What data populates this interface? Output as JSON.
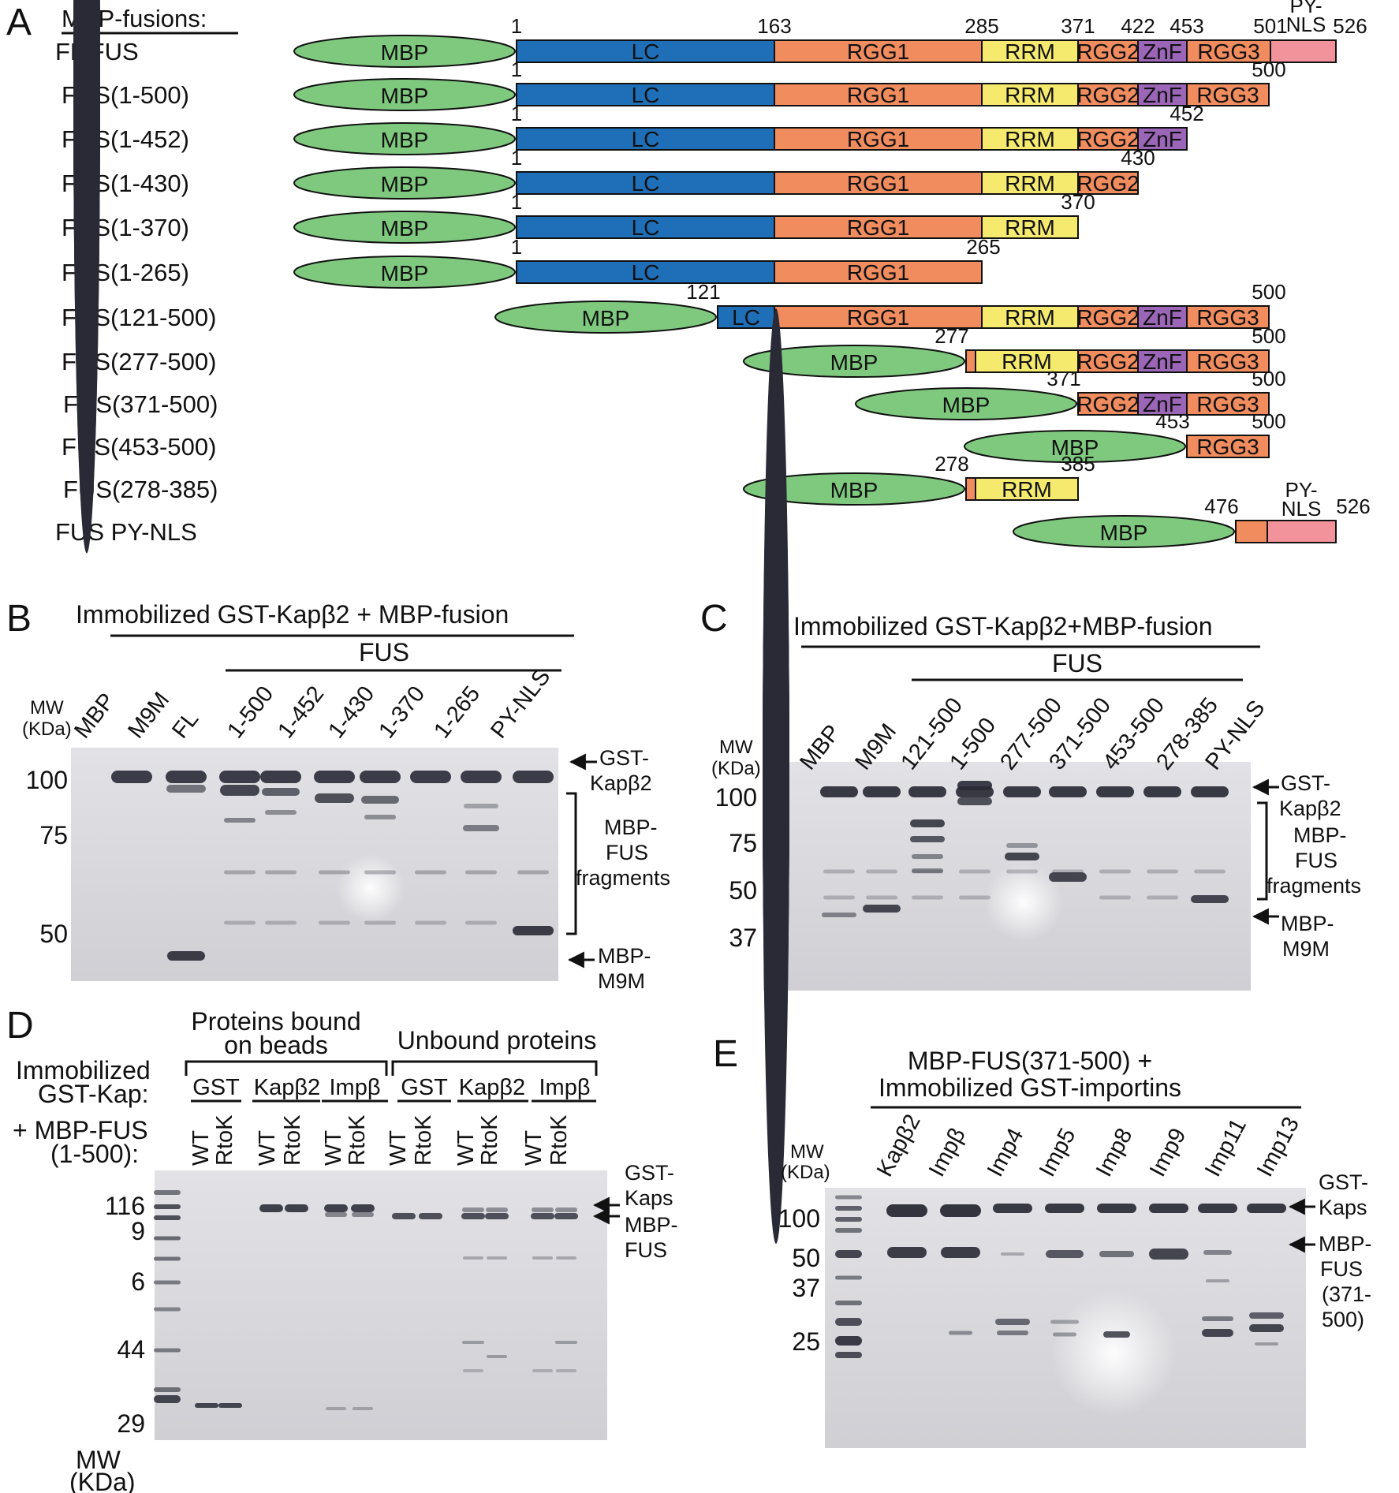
{
  "colors": {
    "MBP": "#7fc97f",
    "LC": "#1f6fb8",
    "RGG": "#f08c5e",
    "RRM": "#f5ea6e",
    "ZnF": "#9b66b7",
    "PYNLS": "#f2939c",
    "gel_background": "#d8d8dc",
    "band": "#2a2a36"
  },
  "panels": {
    "A": {
      "label": "A",
      "title": "MBP-fusions:",
      "constructs": [
        {
          "name": "FL FUS",
          "tag": "MBP",
          "start_label": "1",
          "end_label": "526",
          "domains": [
            "LC",
            "RGG1",
            "RRM",
            "RGG2",
            "ZnF",
            "RGG3",
            "PY-NLS"
          ],
          "boundary_labels": [
            "1",
            "163",
            "285",
            "371",
            "422",
            "453",
            "501",
            "526"
          ]
        },
        {
          "name": "FUS(1-500)",
          "tag": "MBP",
          "start_label": "1",
          "end_label": "500",
          "domains": [
            "LC",
            "RGG1",
            "RRM",
            "RGG2",
            "ZnF",
            "RGG3"
          ]
        },
        {
          "name": "FUS(1-452)",
          "tag": "MBP",
          "start_label": "1",
          "end_label": "452",
          "domains": [
            "LC",
            "RGG1",
            "RRM",
            "RGG2",
            "ZnF"
          ]
        },
        {
          "name": "FUS(1-430)",
          "tag": "MBP",
          "start_label": "1",
          "end_label": "430",
          "domains": [
            "LC",
            "RGG1",
            "RRM",
            "RGG2"
          ]
        },
        {
          "name": "FUS(1-370)",
          "tag": "MBP",
          "start_label": "1",
          "end_label": "370",
          "domains": [
            "LC",
            "RGG1",
            "RRM"
          ]
        },
        {
          "name": "FUS(1-265)",
          "tag": "MBP",
          "start_label": "1",
          "end_label": "265",
          "domains": [
            "LC",
            "RGG1"
          ]
        },
        {
          "name": "FUS(121-500)",
          "tag": "MBP",
          "start_label": "121",
          "end_label": "500",
          "domains": [
            "LC",
            "RGG1",
            "RRM",
            "RGG2",
            "ZnF",
            "RGG3"
          ]
        },
        {
          "name": "FUS(277-500)",
          "tag": "MBP",
          "start_label": "277",
          "end_label": "500",
          "domains": [
            "RGG1",
            "RRM",
            "RGG2",
            "ZnF",
            "RGG3"
          ]
        },
        {
          "name": "FUS(371-500)",
          "tag": "MBP",
          "start_label": "371",
          "end_label": "500",
          "domains": [
            "RGG2",
            "ZnF",
            "RGG3"
          ]
        },
        {
          "name": "FUS(453-500)",
          "tag": "MBP",
          "start_label": "453",
          "end_label": "500",
          "domains": [
            "RGG3"
          ]
        },
        {
          "name": "FUS(278-385)",
          "tag": "MBP",
          "start_label": "278",
          "end_label": "385",
          "domains": [
            "RGG1",
            "RRM"
          ]
        },
        {
          "name": "FUS PY-NLS",
          "tag": "MBP",
          "start_label": "476",
          "end_label": "526",
          "domains": [
            "RGG3",
            "PY-NLS"
          ]
        }
      ],
      "domain_labels": {
        "MBP": "MBP",
        "LC": "LC",
        "RGG1": "RGG1",
        "RRM": "RRM",
        "RGG2": "RGG2",
        "ZnF": "ZnF",
        "RGG3": "RGG3",
        "PYNLS_1": "PY-",
        "PYNLS_2": "NLS"
      }
    },
    "B": {
      "label": "B",
      "title": "Immobilized GST-Kapβ2 + MBP-fusion",
      "subtitle": "FUS",
      "mw_header_1": "MW",
      "mw_header_2": "(KDa)",
      "lanes": [
        "MBP",
        "M9M",
        "FL",
        "1-500",
        "1-452",
        "1-430",
        "1-370",
        "1-265",
        "PY-NLS"
      ],
      "mw_markers": [
        "100",
        "75",
        "50"
      ],
      "right_labels": {
        "top_1": "GST-",
        "top_2": "Kapβ2",
        "mid_1": "MBP-",
        "mid_2": "FUS",
        "mid_3": "fragments",
        "bot_1": "MBP-",
        "bot_2": "M9M"
      }
    },
    "C": {
      "label": "C",
      "title": "Immobilized GST-Kapβ2+MBP-fusion",
      "subtitle": "FUS",
      "mw_header_1": "MW",
      "mw_header_2": "(KDa)",
      "lanes": [
        "MBP",
        "M9M",
        "121-500",
        "1-500",
        "277-500",
        "371-500",
        "453-500",
        "278-385",
        "PY-NLS"
      ],
      "mw_markers": [
        "100",
        "75",
        "50",
        "37"
      ],
      "right_labels": {
        "top_1": "GST-",
        "top_2": "Kapβ2",
        "mid_1": "MBP-",
        "mid_2": "FUS",
        "mid_3": "fragments",
        "bot_1": "MBP-",
        "bot_2": "M9M"
      }
    },
    "D": {
      "label": "D",
      "group_bound_1": "Proteins bound",
      "group_bound_2": "on beads",
      "group_unbound": "Unbound proteins",
      "row_label_1a": "Immobilized",
      "row_label_1b": "GST-Kap:",
      "row_label_2a": "+ MBP-FUS",
      "row_label_2b": "(1-500):",
      "kaps": [
        "GST",
        "Kapβ2",
        "Impβ",
        "GST",
        "Kapβ2",
        "Impβ"
      ],
      "lanes": [
        "WT",
        "RtoK",
        "WT",
        "RtoK",
        "WT",
        "RtoK",
        "WT",
        "RtoK",
        "WT",
        "RtoK",
        "WT",
        "RtoK"
      ],
      "mw_markers": [
        "116",
        "9",
        "6",
        "44",
        "29"
      ],
      "mw_footer_1": "MW",
      "mw_footer_2": "(KDa)",
      "right_labels": {
        "top_1": "GST-",
        "top_2": "Kaps",
        "bot_1": "MBP-",
        "bot_2": "FUS"
      }
    },
    "E": {
      "label": "E",
      "title_1": "MBP-FUS(371-500) +",
      "title_2": "Immobilized GST-importins",
      "mw_header_1": "MW",
      "mw_header_2": "(KDa)",
      "lanes": [
        "Kapβ2",
        "Impβ",
        "Imp4",
        "Imp5",
        "Imp8",
        "Imp9",
        "Imp11",
        "Imp13"
      ],
      "mw_markers": [
        "100",
        "50",
        "37",
        "25"
      ],
      "right_labels": {
        "top_1": "GST-",
        "top_2": "Kaps",
        "bot_1": "MBP-",
        "bot_2": "FUS",
        "bot_3": "(371-",
        "bot_4": "500)"
      }
    }
  }
}
